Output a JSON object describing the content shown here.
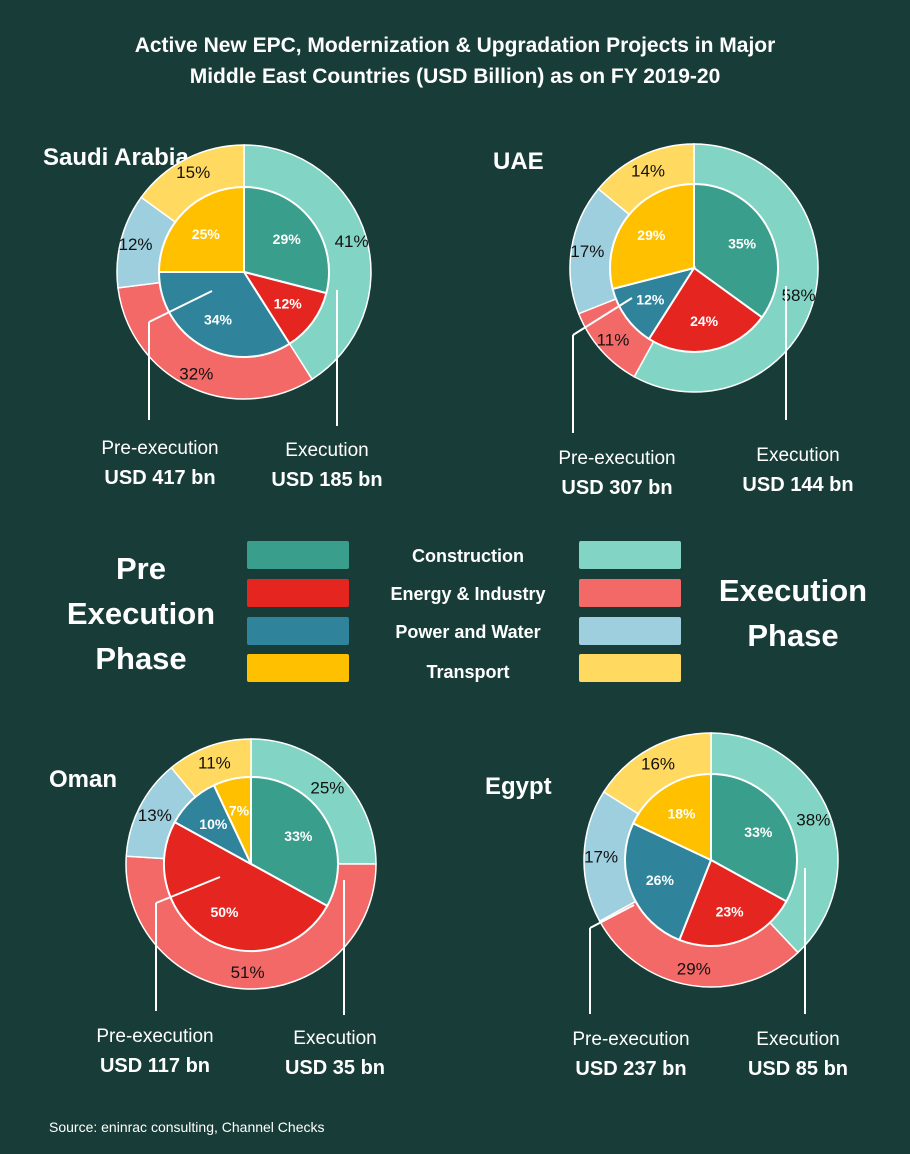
{
  "title": {
    "line1": "Active New EPC, Modernization & Upgradation Projects in Major",
    "line2": "Middle East Countries (USD Billion) as on FY 2019-20"
  },
  "colors": {
    "inner": {
      "Construction": "#3a9e8c",
      "Energy & Industry": "#e52520",
      "Power and Water": "#2f849c",
      "Transport": "#ffc000"
    },
    "outer": {
      "Construction": "#82d4c4",
      "Energy & Industry": "#f26967",
      "Power and Water": "#9ecfde",
      "Transport": "#ffd960"
    },
    "background": "#183d38"
  },
  "legend": {
    "items": [
      "Construction",
      "Energy & Industry",
      "Power and Water",
      "Transport"
    ],
    "pre_heading": [
      "Pre",
      "Execution",
      "Phase"
    ],
    "exec_heading": [
      "Execution",
      "Phase"
    ]
  },
  "chart_data": [
    {
      "type": "pie",
      "country": "Saudi Arabia",
      "categories": [
        "Construction",
        "Energy & Industry",
        "Power and Water",
        "Transport"
      ],
      "inner_series": {
        "name": "Pre-execution",
        "values": [
          29,
          12,
          34,
          25
        ],
        "labels": [
          "29%",
          "12%",
          "34%",
          "25%"
        ]
      },
      "outer_series": {
        "name": "Execution",
        "values": [
          41,
          32,
          12,
          15
        ],
        "labels": [
          "41%",
          "32%",
          "12%",
          "15%"
        ]
      },
      "pre_label": "Pre-execution",
      "pre_value": "USD 417 bn",
      "exec_label": "Execution",
      "exec_value": "USD 185 bn"
    },
    {
      "type": "pie",
      "country": "UAE",
      "categories": [
        "Construction",
        "Energy & Industry",
        "Power and Water",
        "Transport"
      ],
      "inner_series": {
        "name": "Pre-execution",
        "values": [
          35,
          24,
          12,
          29
        ],
        "labels": [
          "35%",
          "24%",
          "12%",
          "29%"
        ]
      },
      "outer_series": {
        "name": "Execution",
        "values": [
          58,
          11,
          17,
          14
        ],
        "labels": [
          "58%",
          "11%",
          "17%",
          "14%"
        ]
      },
      "pre_label": "Pre-execution",
      "pre_value": "USD 307 bn",
      "exec_label": "Execution",
      "exec_value": "USD 144 bn"
    },
    {
      "type": "pie",
      "country": "Oman",
      "categories": [
        "Construction",
        "Energy & Industry",
        "Power and Water",
        "Transport"
      ],
      "inner_series": {
        "name": "Pre-execution",
        "values": [
          33,
          50,
          10,
          7
        ],
        "labels": [
          "33%",
          "50%",
          "10%",
          "7%"
        ]
      },
      "outer_series": {
        "name": "Execution",
        "values": [
          25,
          51,
          13,
          11
        ],
        "labels": [
          "25%",
          "51%",
          "13%",
          "11%"
        ]
      },
      "pre_label": "Pre-execution",
      "pre_value": "USD 117 bn",
      "exec_label": "Execution",
      "exec_value": "USD 35 bn"
    },
    {
      "type": "pie",
      "country": "Egypt",
      "categories": [
        "Construction",
        "Energy & Industry",
        "Power and Water",
        "Transport"
      ],
      "inner_series": {
        "name": "Pre-execution",
        "values": [
          33,
          23,
          26,
          18
        ],
        "labels": [
          "33%",
          "23%",
          "26%",
          "18%"
        ]
      },
      "outer_series": {
        "name": "Execution",
        "values": [
          38,
          29,
          17,
          16
        ],
        "labels": [
          "38%",
          "29%",
          "17%",
          "16%"
        ]
      },
      "pre_label": "Pre-execution",
      "pre_value": "USD 237 bn",
      "exec_label": "Execution",
      "exec_value": "USD 85 bn"
    }
  ],
  "source": "Source: eninrac consulting, Channel Checks"
}
